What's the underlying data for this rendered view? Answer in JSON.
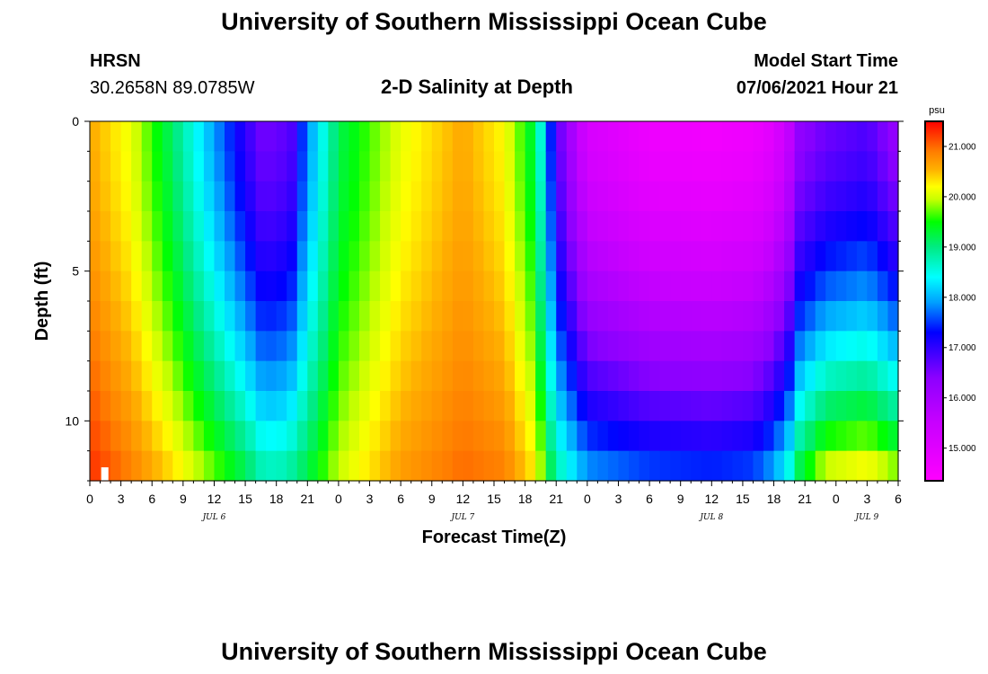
{
  "header": {
    "title": "University of Southern Mississippi Ocean Cube",
    "station_name": "HRSN",
    "station_coords": "30.2658N  89.0785W",
    "plot_subtitle": "2-D Salinity at Depth",
    "model_start_label": "Model Start Time",
    "model_start_value": "07/06/2021 Hour 21"
  },
  "footer": {
    "title": "University of Southern Mississippi Ocean Cube"
  },
  "chart_data": {
    "type": "heatmap",
    "title": "2-D Salinity at Depth",
    "xlabel": "Forecast Time(Z)",
    "ylabel": "Depth (ft)",
    "units": "psu",
    "x_start_hour": 0,
    "x_end_hour": 78,
    "x_ticks": [
      0,
      3,
      6,
      9,
      12,
      15,
      18,
      21,
      24,
      27,
      30,
      33,
      36,
      39,
      42,
      45,
      48,
      51,
      54,
      57,
      60,
      63,
      66,
      69,
      72,
      75,
      78
    ],
    "x_tick_labels": [
      "0",
      "3",
      "6",
      "9",
      "12",
      "15",
      "18",
      "21",
      "0",
      "3",
      "6",
      "9",
      "12",
      "15",
      "18",
      "21",
      "0",
      "3",
      "6",
      "9",
      "12",
      "15",
      "18",
      "21",
      "0",
      "3",
      "6"
    ],
    "date_labels": [
      {
        "hour": 12,
        "text": "JUL 6"
      },
      {
        "hour": 36,
        "text": "JUL 7"
      },
      {
        "hour": 60,
        "text": "JUL 8"
      },
      {
        "hour": 75,
        "text": "JUL 9"
      }
    ],
    "y_range_ft": [
      0,
      12
    ],
    "y_ticks": [
      0,
      5,
      10
    ],
    "y_tick_labels": [
      "0",
      "5",
      "10"
    ],
    "depth_levels_ft": [
      0.5,
      1.5,
      2.5,
      3.5,
      4.5,
      5.5,
      6.5,
      7.5,
      8.5,
      9.5,
      10.5,
      11.5
    ],
    "colorbar": {
      "min": 14.35,
      "max": 21.5,
      "ticks": [
        15.0,
        16.0,
        17.0,
        18.0,
        19.0,
        20.0,
        21.0
      ],
      "tick_labels": [
        "15.000",
        "16.000",
        "17.000",
        "18.000",
        "19.000",
        "20.000",
        "21.000"
      ],
      "unit_label": "psu"
    },
    "salinity_keyframes": {
      "hours": [
        0,
        4,
        8,
        12,
        15,
        16.5,
        18,
        19.5,
        21,
        24,
        30,
        36,
        40,
        43,
        45,
        48,
        54,
        60,
        64,
        66,
        67.5,
        68.5,
        71,
        75,
        78
      ],
      "surface": [
        20.6,
        20.1,
        19.1,
        17.9,
        17.0,
        16.6,
        16.6,
        16.8,
        17.8,
        19.2,
        20.1,
        20.6,
        20.2,
        19.2,
        16.8,
        15.2,
        14.7,
        14.6,
        14.7,
        15.0,
        15.6,
        16.3,
        16.6,
        16.8,
        16.2
      ],
      "bottom": [
        21.3,
        20.9,
        20.4,
        19.8,
        19.3,
        18.9,
        18.8,
        19.0,
        19.3,
        20.0,
        20.7,
        21.0,
        20.9,
        20.3,
        18.9,
        18.0,
        17.7,
        17.6,
        17.7,
        18.1,
        18.7,
        19.4,
        20.2,
        20.4,
        20.0
      ]
    }
  }
}
